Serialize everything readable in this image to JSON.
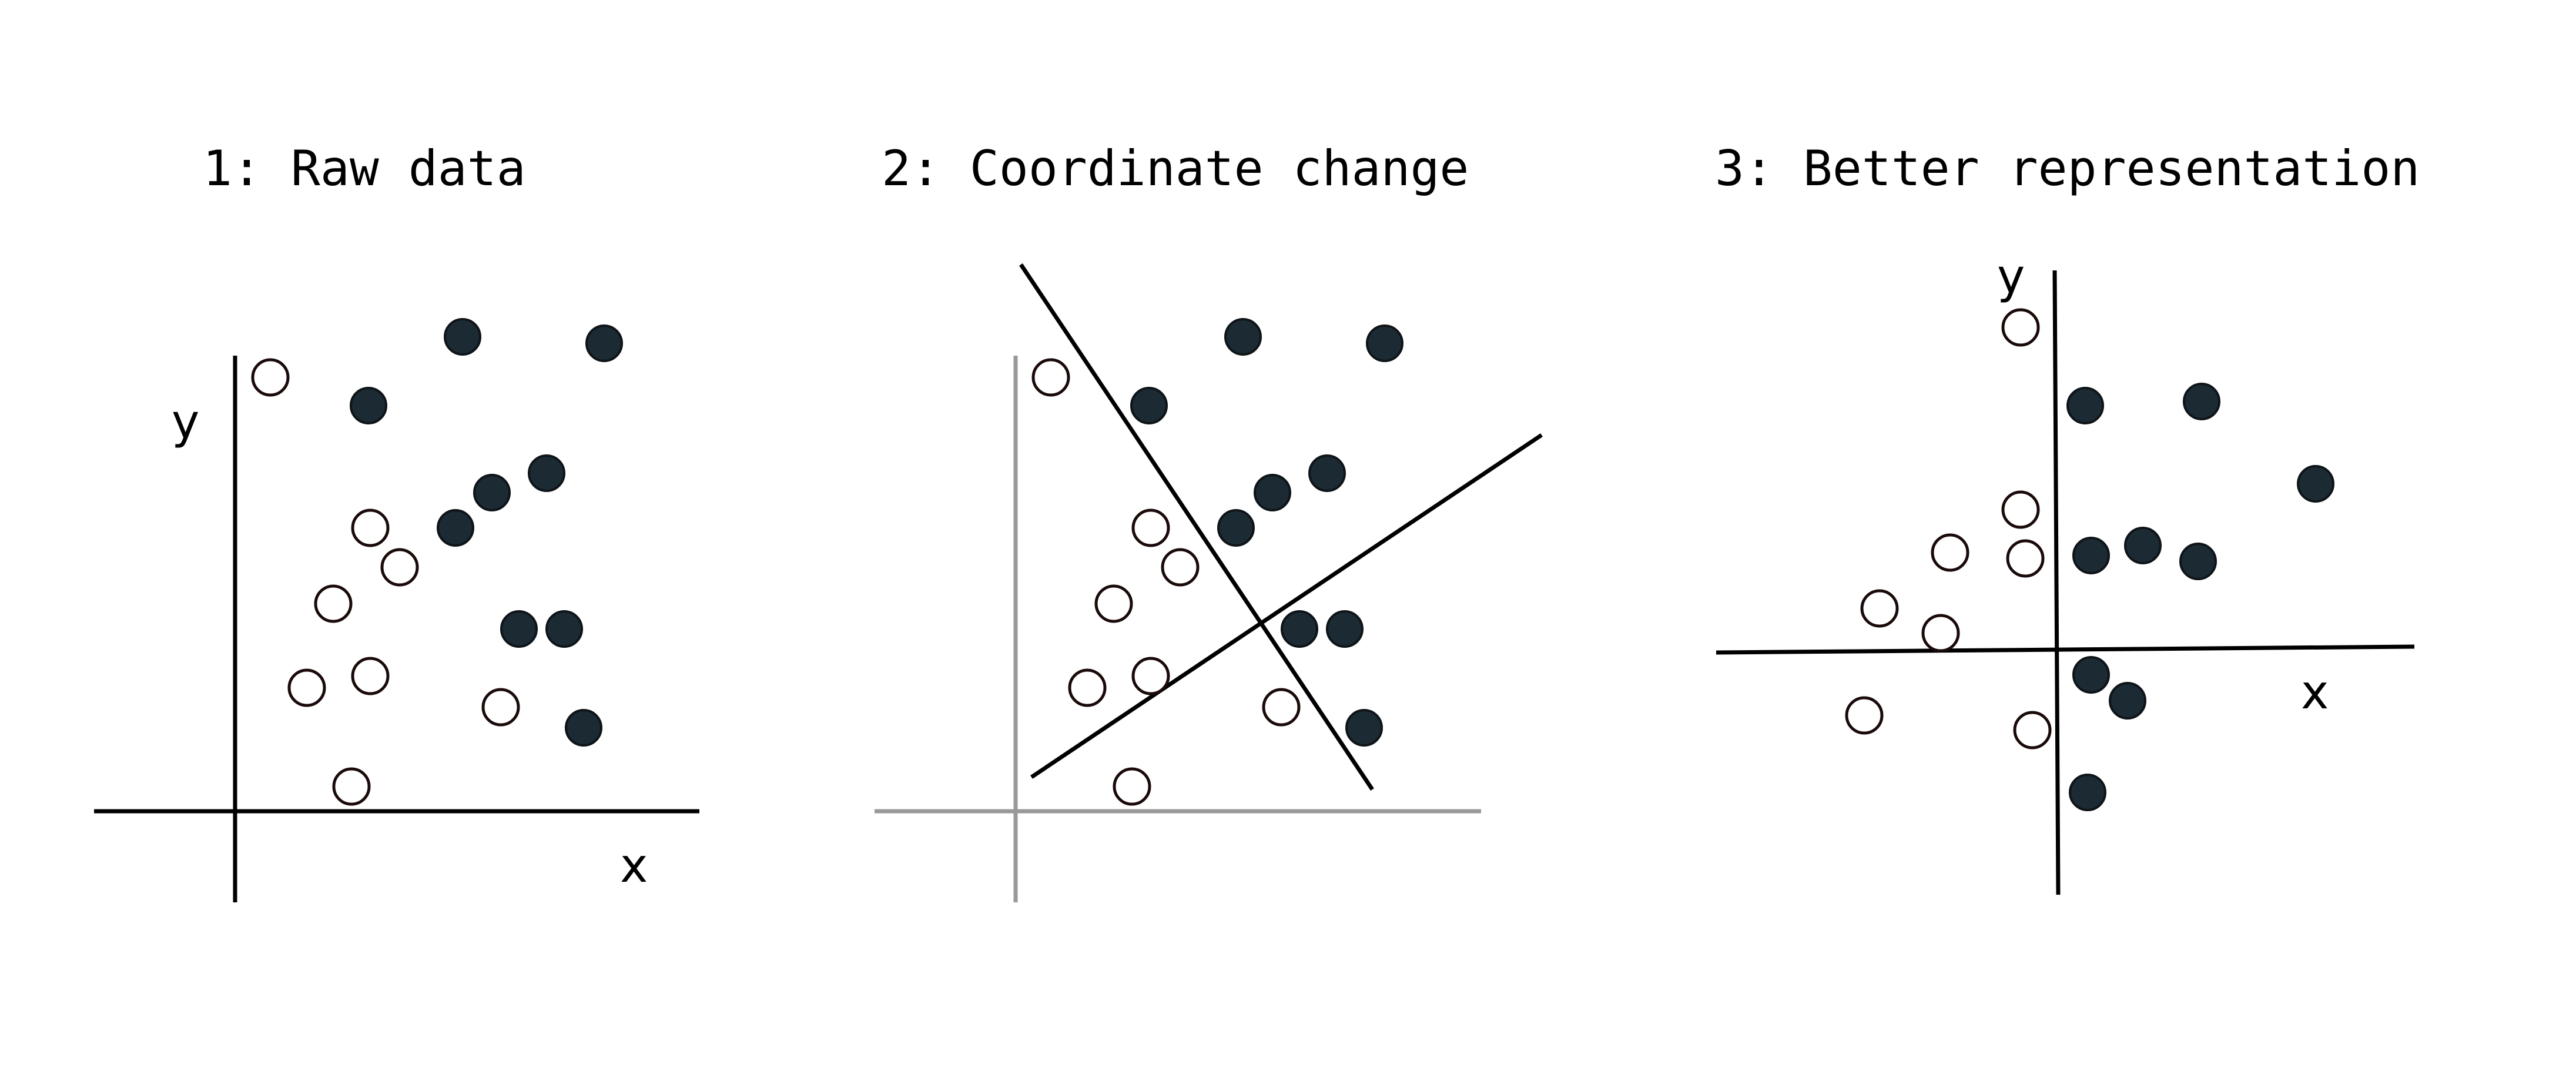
{
  "panels": [
    {
      "title": "1: Raw data",
      "x_label": "x",
      "y_label": "y"
    },
    {
      "title": "2: Coordinate change"
    },
    {
      "title": "3: Better representation",
      "x_label": "x",
      "y_label": "y"
    }
  ],
  "colors": {
    "filled_point": "#1b2a33",
    "open_point_fill": "#ffffff",
    "open_point_stroke": "#1a0a0a",
    "axis_black": "#000000",
    "axis_gray": "#999999"
  },
  "point_classes": [
    "open",
    "filled"
  ]
}
